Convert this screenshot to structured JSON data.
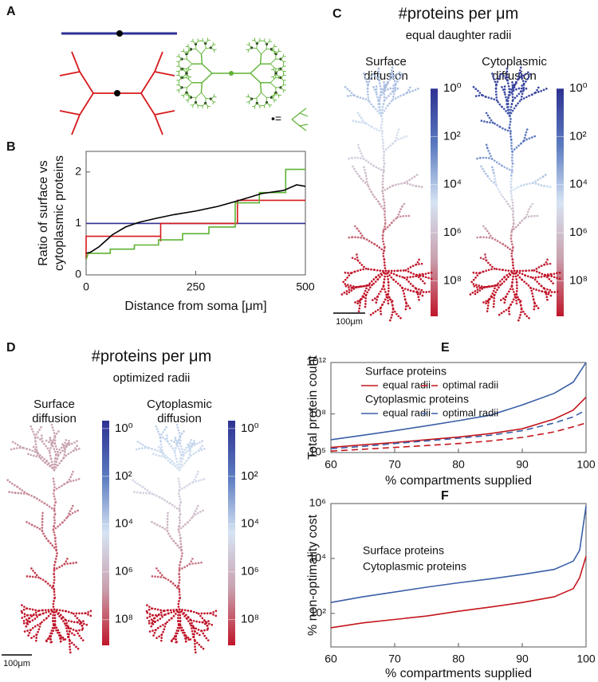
{
  "panel_a": {
    "panel": "A",
    "symbol_legend": "•="
  },
  "chart_data": [
    {
      "panel": "B",
      "type": "line",
      "xlabel": "Distance from soma [μm]",
      "ylabel": [
        "Ratio of surface vs",
        "cytoplasmic proteins"
      ],
      "xlim": [
        0,
        500
      ],
      "xticks": [
        0,
        250,
        500
      ],
      "ylim": [
        0,
        2.4
      ],
      "yticks": [
        0,
        1,
        2
      ],
      "log_scale": false,
      "series": [
        {
          "color": "#2e3192",
          "x": [
            0,
            500
          ],
          "values": [
            1,
            1
          ]
        },
        {
          "color": "#d7191c",
          "x": [
            0,
            0,
            170,
            170,
            170,
            345,
            345,
            500
          ],
          "values": [
            0.3,
            0.75,
            0.75,
            0.65,
            1.0,
            1.0,
            1.45,
            1.45
          ]
        },
        {
          "color": "#5db233",
          "x": [
            0,
            5,
            55,
            55,
            110,
            110,
            165,
            165,
            220,
            220,
            280,
            280,
            340,
            340,
            395,
            395,
            455,
            455,
            500
          ],
          "values": [
            0.3,
            0.42,
            0.42,
            0.5,
            0.5,
            0.58,
            0.58,
            0.68,
            0.68,
            0.8,
            0.8,
            0.93,
            0.93,
            1.4,
            1.4,
            1.6,
            1.6,
            2.05,
            2.05
          ]
        },
        {
          "color": "#000000",
          "x": [
            0,
            10,
            30,
            60,
            90,
            120,
            160,
            200,
            250,
            300,
            350,
            400,
            450,
            480,
            500
          ],
          "values": [
            0.42,
            0.44,
            0.55,
            0.78,
            0.93,
            1.02,
            1.1,
            1.17,
            1.24,
            1.33,
            1.45,
            1.58,
            1.64,
            1.75,
            1.72
          ]
        }
      ]
    },
    {
      "panel": "C",
      "type": "colorbar",
      "title": "#proteins per μm",
      "subtitle": "equal daughter radii",
      "scale_bar": "100μm",
      "log_scale": true,
      "ylim": [
        3000000000,
        1
      ],
      "yticks": [
        {
          "value": 1,
          "label": "10⁰"
        },
        {
          "value": 100,
          "label": "10²"
        },
        {
          "value": 10000,
          "label": "10⁴"
        },
        {
          "value": 1000000,
          "label": "10⁶"
        },
        {
          "value": 100000000,
          "label": "10⁸"
        }
      ],
      "colormap": [
        "#2e3192",
        "#5b7bc0",
        "#d6e4f4",
        "#c9a0ad",
        "#c0162a"
      ],
      "views": [
        {
          "title": [
            "Surface",
            "diffusion"
          ]
        },
        {
          "title": [
            "Cytoplasmic",
            "diffusion"
          ]
        }
      ]
    },
    {
      "panel": "D",
      "type": "colorbar",
      "title": "#proteins per μm",
      "subtitle": "optimized radii",
      "scale_bar": "100μm",
      "log_scale": true,
      "ylim": [
        1200000000,
        0.47
      ],
      "yticks": [
        {
          "value": 1,
          "label": "10⁰"
        },
        {
          "value": 100,
          "label": "10²"
        },
        {
          "value": 10000,
          "label": "10⁴"
        },
        {
          "value": 1000000,
          "label": "10⁶"
        },
        {
          "value": 100000000,
          "label": "10⁸"
        }
      ],
      "colormap": [
        "#2e3192",
        "#5b7bc0",
        "#d6e4f4",
        "#c9a0ad",
        "#c0162a"
      ],
      "views": [
        {
          "title": [
            "Surface",
            "diffusion"
          ]
        },
        {
          "title": [
            "Cytoplasmic",
            "diffusion"
          ]
        }
      ]
    },
    {
      "panel": "E",
      "type": "line",
      "xlabel": "% compartments supplied",
      "ylabel": "Total protein count",
      "log_scale": true,
      "xlim": [
        60,
        100
      ],
      "xticks": [
        60,
        70,
        80,
        90,
        100
      ],
      "ylim": [
        100000,
        1000000000000
      ],
      "yticks": [
        {
          "value": 100000,
          "label": "10⁵"
        },
        {
          "value": 100000000,
          "label": "10⁸"
        },
        {
          "value": 1000000000000,
          "label": "10¹²"
        }
      ],
      "legend_groups": [
        {
          "name": "Surface proteins",
          "color": "#c4161c"
        },
        {
          "name": "Cytoplasmic proteins",
          "color": "#3a5fa8"
        }
      ],
      "x": [
        60,
        65,
        70,
        75,
        80,
        85,
        90,
        95,
        98,
        100
      ],
      "series": [
        {
          "name": "equal radii",
          "color": "#c4161c",
          "dashed": false,
          "values": [
            250000,
            400000,
            600000,
            1000000,
            1600000,
            3000000,
            7000000,
            40000000,
            200000000,
            2000000000
          ]
        },
        {
          "name": "optimal radii",
          "color": "#c4161c",
          "dashed": true,
          "values": [
            130000,
            180000,
            250000,
            350000,
            500000,
            800000,
            1500000,
            4000000,
            10000000,
            20000000
          ]
        },
        {
          "name": "equal radii",
          "color": "#3a5fa8",
          "dashed": false,
          "values": [
            1000000,
            2200000,
            5000000,
            12000000,
            30000000,
            80000000,
            500000000,
            4000000000,
            30000000000,
            1000000000000
          ]
        },
        {
          "name": "optimal radii",
          "color": "#3a5fa8",
          "dashed": true,
          "values": [
            200000,
            300000,
            500000,
            800000,
            1300000,
            2200000,
            5000000,
            20000000,
            60000000,
            200000000
          ]
        }
      ]
    },
    {
      "panel": "F",
      "type": "line",
      "xlabel": "% compartments supplied",
      "ylabel": "% non-optimality cost",
      "log_scale": true,
      "xlim": [
        60,
        100
      ],
      "xticks": [
        60,
        70,
        80,
        90,
        100
      ],
      "ylim": [
        6,
        1000000
      ],
      "yticks": [
        {
          "value": 100,
          "label": "10²"
        },
        {
          "value": 10000,
          "label": "10⁴"
        },
        {
          "value": 1000000,
          "label": "10⁶"
        }
      ],
      "x": [
        60,
        65,
        70,
        75,
        80,
        85,
        90,
        95,
        98,
        99,
        100
      ],
      "series": [
        {
          "name": "Surface proteins",
          "color": "#c4161c",
          "values": [
            30,
            45,
            60,
            80,
            120,
            170,
            250,
            400,
            800,
            2000,
            12000
          ]
        },
        {
          "name": "Cytoplasmic proteins",
          "color": "#3a5fa8",
          "values": [
            250,
            400,
            600,
            900,
            1300,
            1800,
            2600,
            4000,
            8000,
            20000,
            800000
          ]
        }
      ]
    }
  ]
}
